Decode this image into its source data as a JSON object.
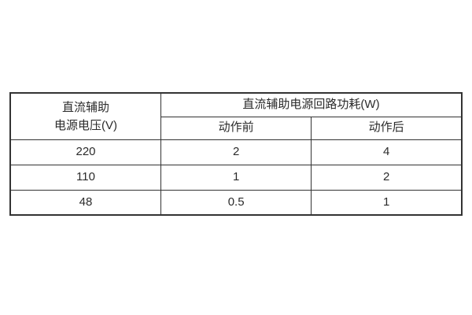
{
  "table": {
    "voltage_header": {
      "line1": "直流辅助",
      "line2": "电源电压(V)"
    },
    "power_header": "直流辅助电源回路功耗(W)",
    "sub_headers": [
      "动作前",
      "动作后"
    ],
    "rows": [
      {
        "voltage": "220",
        "before": "2",
        "after": "4"
      },
      {
        "voltage": "110",
        "before": "1",
        "after": "2"
      },
      {
        "voltage": "48",
        "before": "0.5",
        "after": "1"
      }
    ],
    "colors": {
      "border": "#333333",
      "text": "#2b2b2b",
      "background": "#ffffff"
    }
  }
}
